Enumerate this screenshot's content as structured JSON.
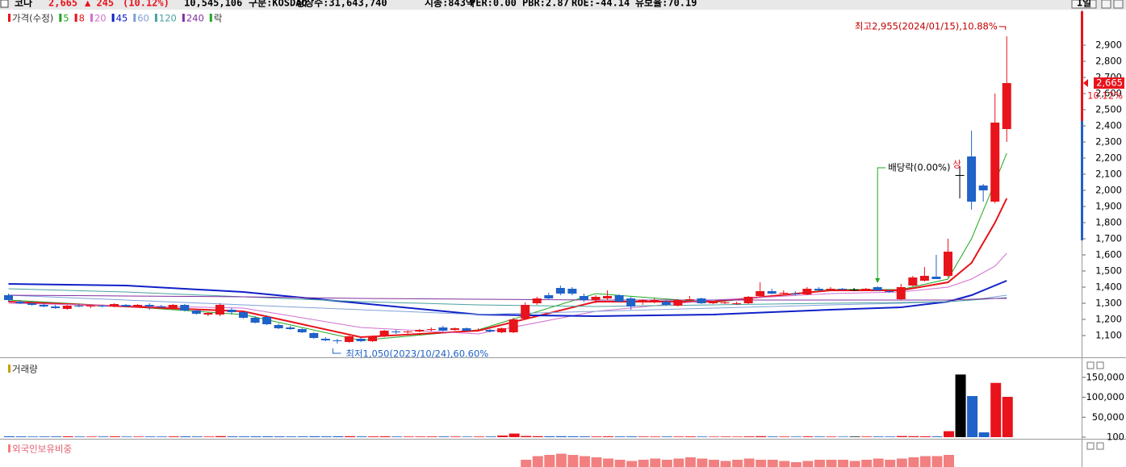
{
  "header": {
    "name": "코나",
    "price": "2,665",
    "change": "▲ 245",
    "change_pct": "(10.12%)",
    "volume": "10,545,106",
    "info": [
      "구분:KOSDAQ",
      "상장수:31,643,740",
      "시총:843억",
      "PER:0.00",
      "PBR:2.87",
      "ROE:-44.14",
      "유보율:70.19"
    ],
    "period": "1일"
  },
  "chart_data": [
    {
      "type": "candlestick",
      "name": "가격(수정)",
      "up_color": "#e8131b",
      "down_color": "#1f62c8",
      "flat_color": "#000000",
      "open": [
        1350,
        1310,
        1300,
        1290,
        1280,
        1265,
        1285,
        1280,
        1285,
        1280,
        1290,
        1280,
        1290,
        1280,
        1270,
        1290,
        1255,
        1230,
        1230,
        1260,
        1245,
        1210,
        1215,
        1165,
        1150,
        1140,
        1115,
        1080,
        1070,
        1060,
        1080,
        1065,
        1095,
        1125,
        1120,
        1125,
        1135,
        1150,
        1135,
        1145,
        1130,
        1135,
        1120,
        1120,
        1205,
        1300,
        1350,
        1395,
        1390,
        1345,
        1320,
        1330,
        1350,
        1330,
        1310,
        1315,
        1310,
        1285,
        1320,
        1330,
        1300,
        1300,
        1295,
        1300,
        1345,
        1375,
        1360,
        1360,
        1355,
        1390,
        1385,
        1390,
        1385,
        1380,
        1400,
        1375,
        1325,
        1410,
        1440,
        1465,
        1470,
        2095,
        2210,
        2030,
        1930,
        2380
      ],
      "high": [
        1360,
        1320,
        1310,
        1300,
        1290,
        1290,
        1295,
        1290,
        1290,
        1300,
        1295,
        1295,
        1300,
        1290,
        1295,
        1295,
        1260,
        1245,
        1300,
        1270,
        1250,
        1220,
        1225,
        1175,
        1160,
        1145,
        1120,
        1090,
        1080,
        1100,
        1085,
        1100,
        1135,
        1135,
        1130,
        1140,
        1150,
        1160,
        1150,
        1150,
        1145,
        1140,
        1150,
        1210,
        1305,
        1340,
        1365,
        1410,
        1400,
        1360,
        1350,
        1380,
        1355,
        1340,
        1325,
        1330,
        1320,
        1325,
        1345,
        1335,
        1315,
        1310,
        1310,
        1345,
        1430,
        1390,
        1380,
        1375,
        1400,
        1400,
        1400,
        1395,
        1395,
        1395,
        1405,
        1385,
        1420,
        1470,
        1525,
        1600,
        1700,
        2150,
        2370,
        2040,
        2600,
        2955
      ],
      "low": [
        1310,
        1295,
        1285,
        1275,
        1265,
        1260,
        1275,
        1270,
        1275,
        1275,
        1275,
        1275,
        1260,
        1270,
        1265,
        1250,
        1230,
        1220,
        1220,
        1230,
        1205,
        1175,
        1165,
        1140,
        1135,
        1115,
        1080,
        1065,
        1050,
        1055,
        1060,
        1060,
        1090,
        1110,
        1110,
        1120,
        1125,
        1125,
        1130,
        1125,
        1125,
        1120,
        1115,
        1115,
        1200,
        1290,
        1325,
        1350,
        1350,
        1310,
        1300,
        1320,
        1305,
        1260,
        1290,
        1300,
        1285,
        1280,
        1310,
        1295,
        1295,
        1295,
        1290,
        1295,
        1340,
        1355,
        1355,
        1350,
        1350,
        1375,
        1380,
        1380,
        1375,
        1375,
        1375,
        1365,
        1320,
        1405,
        1435,
        1450,
        1460,
        1950,
        1880,
        1930,
        1920,
        2300
      ],
      "close": [
        1320,
        1300,
        1290,
        1280,
        1270,
        1285,
        1280,
        1285,
        1280,
        1295,
        1280,
        1290,
        1280,
        1275,
        1290,
        1255,
        1235,
        1240,
        1290,
        1245,
        1210,
        1180,
        1170,
        1145,
        1140,
        1120,
        1085,
        1070,
        1065,
        1095,
        1065,
        1090,
        1130,
        1120,
        1125,
        1135,
        1140,
        1130,
        1145,
        1130,
        1135,
        1125,
        1145,
        1200,
        1290,
        1330,
        1330,
        1360,
        1360,
        1320,
        1340,
        1345,
        1310,
        1280,
        1320,
        1320,
        1290,
        1320,
        1325,
        1300,
        1305,
        1305,
        1300,
        1340,
        1375,
        1360,
        1365,
        1355,
        1390,
        1380,
        1390,
        1385,
        1385,
        1390,
        1380,
        1370,
        1400,
        1460,
        1470,
        1450,
        1620,
        2095,
        1930,
        2000,
        2420,
        2665
      ],
      "ma_x": [
        0,
        10,
        20,
        30,
        40,
        50,
        60,
        70,
        76,
        80,
        82,
        84,
        85
      ],
      "series": [
        {
          "name": "5",
          "color": "#1fa81f",
          "values": [
            1320,
            1280,
            1230,
            1070,
            1135,
            1360,
            1305,
            1385,
            1385,
            1450,
            1700,
            2050,
            2230
          ]
        },
        {
          "name": "8",
          "color": "#e8131b",
          "values": [
            1310,
            1280,
            1250,
            1090,
            1130,
            1310,
            1310,
            1380,
            1380,
            1430,
            1550,
            1800,
            1950
          ]
        },
        {
          "name": "20",
          "color": "#d070d0",
          "values": [
            1300,
            1285,
            1270,
            1150,
            1110,
            1250,
            1320,
            1360,
            1370,
            1400,
            1450,
            1530,
            1610
          ]
        },
        {
          "name": "45",
          "color": "#1020c8",
          "values": [
            1420,
            1410,
            1370,
            1300,
            1230,
            1220,
            1230,
            1260,
            1275,
            1310,
            1350,
            1410,
            1440
          ]
        },
        {
          "name": "60",
          "color": "#7fa0d8",
          "values": [
            1350,
            1320,
            1290,
            1260,
            1230,
            1250,
            1270,
            1290,
            1300,
            1310,
            1320,
            1340,
            1350
          ]
        },
        {
          "name": "120",
          "color": "#4aa0a0",
          "values": [
            1390,
            1370,
            1340,
            1310,
            1290,
            1280,
            1290,
            1300,
            1305,
            1310,
            1320,
            1330,
            1335
          ]
        },
        {
          "name": "240",
          "color": "#8030a0",
          "values": [
            1350,
            1345,
            1340,
            1330,
            1325,
            1320,
            1320,
            1320,
            1320,
            1320,
            1325,
            1330,
            1330
          ]
        }
      ],
      "ex_label": "락",
      "ex_color": "#1fa81f",
      "ylim": [
        970,
        3110
      ],
      "yticks": [
        {
          "value": 1100,
          "label": "1,100"
        },
        {
          "value": 1200,
          "label": "1,200"
        },
        {
          "value": 1300,
          "label": "1,300"
        },
        {
          "value": 1400,
          "label": "1,400"
        },
        {
          "value": 1500,
          "label": "1,500"
        },
        {
          "value": 1600,
          "label": "1,600"
        },
        {
          "value": 1700,
          "label": "1,700"
        },
        {
          "value": 1800,
          "label": "1,800"
        },
        {
          "value": 1900,
          "label": "1,900"
        },
        {
          "value": 2000,
          "label": "2,000"
        },
        {
          "value": 2100,
          "label": "2,100"
        },
        {
          "value": 2200,
          "label": "2,200"
        },
        {
          "value": 2300,
          "label": "2,300"
        },
        {
          "value": 2400,
          "label": "2,400"
        },
        {
          "value": 2500,
          "label": "2,500"
        },
        {
          "value": 2600,
          "label": "2,600"
        },
        {
          "value": 2700,
          "label": "2,700"
        },
        {
          "value": 2800,
          "label": "2,800"
        },
        {
          "value": 2900,
          "label": "2,900"
        }
      ],
      "price_tag": {
        "value": 2665,
        "label": "2,665"
      },
      "price_tag_pct": "10.12%",
      "annotations": {
        "high": "최고2,955(2024/01/15),10.88%",
        "low": "최저1,050(2023/10/24),60.60%",
        "dividend": "배당락(0.00%)",
        "upper": "상"
      }
    },
    {
      "type": "bar",
      "name": "거래량",
      "marker_color": "#c8a000",
      "values": [
        2200,
        1800,
        1500,
        1600,
        1700,
        2000,
        1500,
        1400,
        1600,
        1900,
        1500,
        1400,
        1600,
        1500,
        1800,
        2000,
        1700,
        1500,
        2600,
        1900,
        1800,
        2000,
        2100,
        1900,
        1700,
        1800,
        2200,
        1900,
        2300,
        2400,
        1700,
        1800,
        2100,
        1600,
        1500,
        1500,
        1600,
        1700,
        1500,
        1400,
        1500,
        1600,
        4000,
        9000,
        3000,
        2500,
        2200,
        2400,
        2000,
        1800,
        1600,
        1900,
        1700,
        1800,
        1500,
        1400,
        1600,
        1500,
        1700,
        1500,
        1300,
        1400,
        1300,
        1800,
        2500,
        1600,
        1500,
        1400,
        1800,
        1500,
        1400,
        1300,
        1400,
        1500,
        1600,
        1500,
        2800,
        2400,
        2000,
        1800,
        15000,
        157000,
        103000,
        12000,
        136000,
        101000
      ],
      "ylim": [
        0,
        186000
      ],
      "yticks": [
        {
          "value": 150000,
          "label": "150,000"
        },
        {
          "value": 100000,
          "label": "100,000"
        },
        {
          "value": 50000,
          "label": "50,000"
        },
        100
      ]
    },
    {
      "type": "bar",
      "name": "외국인보유비중",
      "color": "#f28080",
      "values": [
        0,
        0,
        0,
        0,
        0,
        0,
        0,
        0,
        0,
        0,
        0,
        0,
        0,
        0,
        0,
        0,
        0,
        0,
        0,
        0,
        0,
        0,
        0,
        0,
        0,
        0,
        0,
        0,
        0,
        0,
        0,
        0,
        0,
        0,
        0,
        0,
        0,
        0,
        0,
        0,
        0,
        0,
        0,
        0,
        0.3,
        0.45,
        0.5,
        0.55,
        0.5,
        0.45,
        0.4,
        0.35,
        0.3,
        0.25,
        0.3,
        0.35,
        0.3,
        0.35,
        0.4,
        0.35,
        0.3,
        0.25,
        0.3,
        0.35,
        0.3,
        0.3,
        0.25,
        0.2,
        0.25,
        0.3,
        0.3,
        0.3,
        0.25,
        0.3,
        0.35,
        0.3,
        0.35,
        0.4,
        0.45,
        0.45,
        0.5,
        0,
        0,
        0,
        0,
        0
      ],
      "ylim": [
        0,
        1
      ]
    }
  ]
}
